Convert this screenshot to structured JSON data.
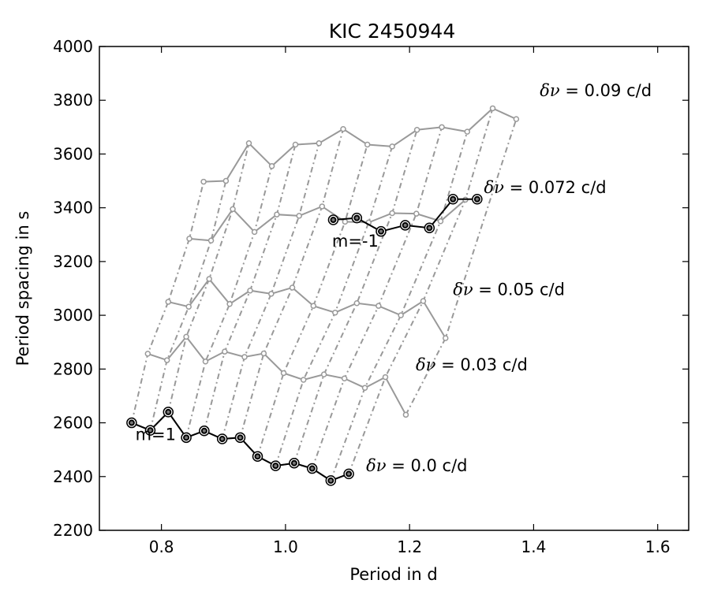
{
  "chart_data": {
    "type": "line",
    "title": "KIC 2450944",
    "xlabel": "Period in d",
    "ylabel": "Period spacing in s",
    "xlim": [
      0.7,
      1.65
    ],
    "ylim": [
      2200,
      4000
    ],
    "xticks": [
      "0.8",
      "1.0",
      "1.2",
      "1.4",
      "1.6"
    ],
    "xtick_values": [
      0.8,
      1.0,
      1.2,
      1.4,
      1.6
    ],
    "yticks": [
      "2200",
      "2400",
      "2600",
      "2800",
      "3000",
      "3200",
      "3400",
      "3600",
      "3800",
      "4000"
    ],
    "ytick_values": [
      2200,
      2400,
      2600,
      2800,
      3000,
      3200,
      3400,
      3600,
      3800,
      4000
    ],
    "grid": false,
    "colors": {
      "model": "#999999",
      "observed": "#000000",
      "connector": "#999999"
    },
    "series": [
      {
        "name": "δν = 0.0 c/d",
        "style": "model",
        "x": [
          0.752,
          0.782,
          0.811,
          0.84,
          0.869,
          0.898,
          0.927,
          0.955,
          0.984,
          1.014,
          1.043,
          1.073,
          1.102
        ],
        "y": [
          2600,
          2572,
          2640,
          2545,
          2570,
          2540,
          2545,
          2475,
          2440,
          2450,
          2430,
          2385,
          2410
        ]
      },
      {
        "name": "δν = 0.03 c/d",
        "style": "model",
        "x": [
          0.778,
          0.809,
          0.84,
          0.871,
          0.902,
          0.934,
          0.965,
          0.997,
          1.029,
          1.062,
          1.095,
          1.128,
          1.161,
          1.194
        ],
        "y": [
          2857,
          2833,
          2920,
          2828,
          2865,
          2845,
          2858,
          2785,
          2760,
          2780,
          2765,
          2730,
          2770,
          2630
        ]
      },
      {
        "name": "δν = 0.05 c/d",
        "style": "model",
        "x": [
          0.811,
          0.844,
          0.877,
          0.91,
          0.943,
          0.977,
          1.011,
          1.045,
          1.08,
          1.115,
          1.15,
          1.186,
          1.222,
          1.258
        ],
        "y": [
          3050,
          3032,
          3135,
          3042,
          3092,
          3080,
          3103,
          3035,
          3010,
          3045,
          3035,
          3000,
          3053,
          2915
        ]
      },
      {
        "name": "δν = 0.072 c/d",
        "style": "model",
        "x": [
          0.845,
          0.88,
          0.915,
          0.95,
          0.986,
          1.022,
          1.059,
          1.096,
          1.134,
          1.172,
          1.211,
          1.25,
          1.29
        ],
        "y": [
          3285,
          3278,
          3395,
          3310,
          3375,
          3370,
          3405,
          3348,
          3345,
          3380,
          3378,
          3350,
          3430
        ]
      },
      {
        "name": "δν = 0.09 c/d",
        "style": "model",
        "x": [
          0.868,
          0.904,
          0.941,
          0.978,
          1.016,
          1.054,
          1.093,
          1.132,
          1.172,
          1.212,
          1.252,
          1.293,
          1.334,
          1.372
        ],
        "y": [
          3497,
          3500,
          3640,
          3555,
          3635,
          3640,
          3693,
          3635,
          3628,
          3690,
          3700,
          3683,
          3770,
          3730
        ]
      },
      {
        "name": "m=1",
        "style": "observed",
        "x": [
          0.752,
          0.782,
          0.811,
          0.84,
          0.869,
          0.898,
          0.927,
          0.955,
          0.984,
          1.014,
          1.043,
          1.073,
          1.102
        ],
        "y": [
          2600,
          2572,
          2640,
          2545,
          2570,
          2540,
          2545,
          2475,
          2440,
          2450,
          2430,
          2385,
          2410
        ]
      },
      {
        "name": "m=-1",
        "style": "observed",
        "x": [
          1.077,
          1.115,
          1.154,
          1.193,
          1.232,
          1.27,
          1.309
        ],
        "y": [
          3355,
          3362,
          3312,
          3335,
          3325,
          3432,
          3432
        ]
      }
    ],
    "annotations": [
      {
        "greek": "δν",
        "text": " = 0.0 c/d",
        "x": 1.13,
        "y": 2420
      },
      {
        "greek": "δν",
        "text": " = 0.03 c/d",
        "x": 1.21,
        "y": 2795
      },
      {
        "greek": "δν",
        "text": " = 0.05 c/d",
        "x": 1.27,
        "y": 3075
      },
      {
        "greek": "δν",
        "text": " = 0.072 c/d",
        "x": 1.32,
        "y": 3455
      },
      {
        "greek": "δν",
        "text": " = 0.09 c/d",
        "x": 1.41,
        "y": 3815
      },
      {
        "greek": "",
        "text": "m=1",
        "x": 0.758,
        "y": 2535
      },
      {
        "greek": "",
        "text": "m=-1",
        "x": 1.075,
        "y": 3255
      }
    ]
  }
}
